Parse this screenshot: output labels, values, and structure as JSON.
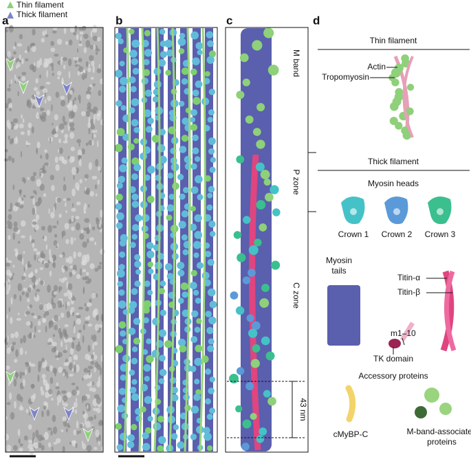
{
  "legend": {
    "thin": "Thin filament",
    "thick": "Thick filament"
  },
  "panel_labels": [
    "a",
    "b",
    "c",
    "d"
  ],
  "panel_c": {
    "zones": [
      "M band",
      "P zone",
      "C zone"
    ],
    "repeat": "43 nm"
  },
  "panel_d": {
    "thin_section": {
      "title": "Thin filament",
      "labels": [
        "Actin",
        "Tropomyosin"
      ]
    },
    "thick_section": {
      "title": "Thick filament",
      "heads_title": "Myosin heads",
      "crowns": [
        "Crown 1",
        "Crown 2",
        "Crown 3"
      ],
      "tails": "Myosin tails",
      "titin": [
        "Titin-α",
        "Titin-β"
      ],
      "m_domains": "m1–10",
      "tk": "TK domain"
    },
    "accessory": {
      "title": "Accessory proteins",
      "items": [
        "cMyBP-C",
        "M-band-associated proteins"
      ]
    }
  }
}
